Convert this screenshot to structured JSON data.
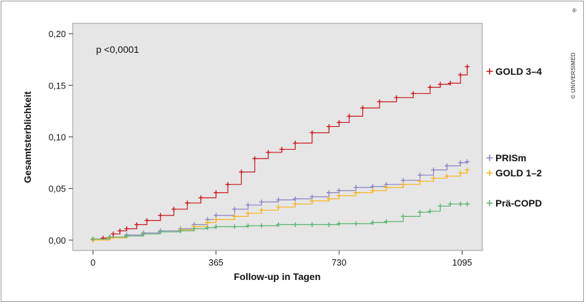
{
  "credit": "© UNIVERSIMED",
  "credit_sup": "®",
  "chart_data": {
    "type": "line",
    "title": "",
    "xlabel": "Follow-up in Tagen",
    "ylabel": "Gesamtsterblichkeit",
    "annotation": "p <0,0001",
    "xlim": [
      -60,
      1155
    ],
    "ylim": [
      -0.01,
      0.21
    ],
    "xticks": [
      0,
      365,
      730,
      1095
    ],
    "xtick_labels": [
      "0",
      "365",
      "730",
      "1095"
    ],
    "yticks": [
      0,
      0.05,
      0.1,
      0.15,
      0.2
    ],
    "ytick_labels": [
      "0,00",
      "0,05",
      "0,10",
      "0,15",
      "0,20"
    ],
    "grid": false,
    "legend_placement": "right, labels at line ends",
    "marker": "+",
    "series": [
      {
        "name": "GOLD 3–4",
        "color": "#c8161d",
        "x": [
          0,
          30,
          60,
          80,
          100,
          130,
          160,
          200,
          240,
          280,
          320,
          365,
          400,
          440,
          480,
          520,
          560,
          600,
          650,
          700,
          730,
          760,
          800,
          850,
          900,
          950,
          1000,
          1030,
          1060,
          1090,
          1110
        ],
        "y": [
          0.001,
          0.002,
          0.006,
          0.009,
          0.011,
          0.015,
          0.019,
          0.024,
          0.03,
          0.036,
          0.041,
          0.046,
          0.054,
          0.066,
          0.079,
          0.085,
          0.088,
          0.094,
          0.104,
          0.11,
          0.114,
          0.12,
          0.128,
          0.134,
          0.138,
          0.142,
          0.148,
          0.151,
          0.152,
          0.16,
          0.168
        ]
      },
      {
        "name": "PRISm",
        "color": "#8a82c4",
        "x": [
          0,
          50,
          100,
          150,
          200,
          260,
          300,
          340,
          365,
          420,
          460,
          500,
          550,
          600,
          650,
          700,
          730,
          780,
          830,
          870,
          920,
          970,
          1010,
          1050,
          1090,
          1110
        ],
        "y": [
          0.001,
          0.003,
          0.005,
          0.007,
          0.009,
          0.011,
          0.015,
          0.02,
          0.024,
          0.03,
          0.034,
          0.037,
          0.039,
          0.04,
          0.042,
          0.046,
          0.048,
          0.051,
          0.052,
          0.054,
          0.058,
          0.063,
          0.068,
          0.072,
          0.075,
          0.076
        ]
      },
      {
        "name": "GOLD 1–2",
        "color": "#f5b51c",
        "x": [
          0,
          50,
          100,
          150,
          200,
          260,
          300,
          340,
          365,
          420,
          460,
          500,
          550,
          600,
          650,
          700,
          730,
          780,
          830,
          870,
          920,
          970,
          1010,
          1050,
          1090,
          1110
        ],
        "y": [
          0.0,
          0.002,
          0.004,
          0.006,
          0.008,
          0.01,
          0.013,
          0.017,
          0.02,
          0.023,
          0.026,
          0.029,
          0.032,
          0.035,
          0.038,
          0.04,
          0.043,
          0.046,
          0.048,
          0.051,
          0.054,
          0.057,
          0.06,
          0.062,
          0.065,
          0.068
        ]
      },
      {
        "name": "Prä-COPD",
        "color": "#5bb371",
        "x": [
          0,
          50,
          100,
          150,
          200,
          260,
          300,
          340,
          365,
          420,
          460,
          500,
          550,
          600,
          650,
          700,
          730,
          780,
          830,
          870,
          920,
          970,
          1000,
          1030,
          1060,
          1090,
          1110
        ],
        "y": [
          0.001,
          0.003,
          0.004,
          0.006,
          0.008,
          0.009,
          0.011,
          0.012,
          0.013,
          0.013,
          0.014,
          0.014,
          0.015,
          0.015,
          0.015,
          0.015,
          0.016,
          0.016,
          0.017,
          0.018,
          0.023,
          0.027,
          0.028,
          0.033,
          0.035,
          0.035,
          0.035
        ]
      }
    ]
  }
}
